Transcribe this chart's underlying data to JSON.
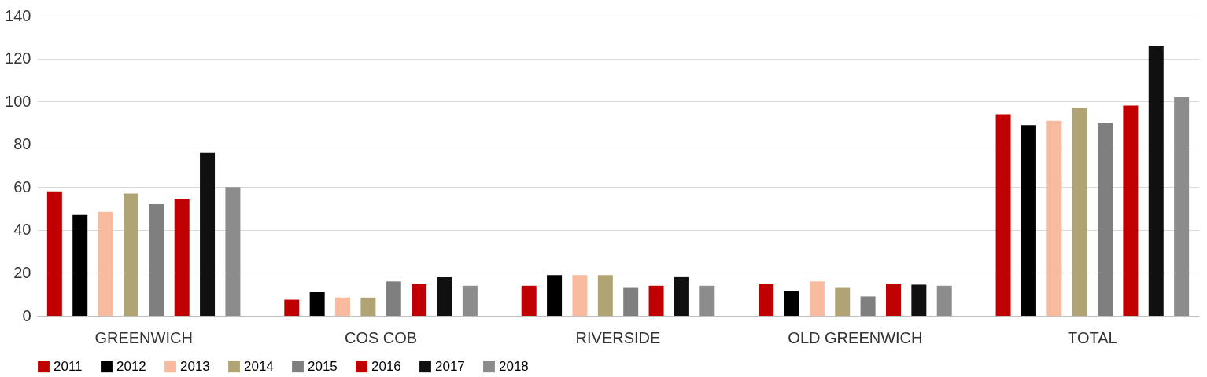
{
  "chart_data": {
    "type": "bar",
    "categories": [
      "GREENWICH",
      "COS COB",
      "RIVERSIDE",
      "OLD GREENWICH",
      "TOTAL"
    ],
    "series": [
      {
        "name": "2011",
        "color": "#c00000",
        "values": [
          58,
          7.5,
          14,
          15,
          94
        ]
      },
      {
        "name": "2012",
        "color": "#000000",
        "values": [
          47,
          11,
          19,
          11.5,
          89
        ]
      },
      {
        "name": "2013",
        "color": "#f8bba0",
        "values": [
          48.5,
          8.5,
          19,
          16,
          91
        ]
      },
      {
        "name": "2014",
        "color": "#b0a474",
        "values": [
          57,
          8.5,
          19,
          13,
          97
        ]
      },
      {
        "name": "2015",
        "color": "#7f7f7f",
        "values": [
          52,
          16,
          13,
          9,
          90
        ]
      },
      {
        "name": "2016",
        "color": "#c00000",
        "values": [
          54.5,
          15,
          14,
          15,
          98
        ]
      },
      {
        "name": "2017",
        "color": "#101010",
        "values": [
          76,
          18,
          18,
          14.5,
          126
        ]
      },
      {
        "name": "2018",
        "color": "#8c8c8c",
        "values": [
          60,
          14,
          14,
          14,
          102
        ]
      }
    ],
    "ylim": [
      0,
      140
    ],
    "yticks": [
      0,
      20,
      40,
      60,
      80,
      100,
      120,
      140
    ],
    "grid": "y",
    "legend": "bottom"
  }
}
